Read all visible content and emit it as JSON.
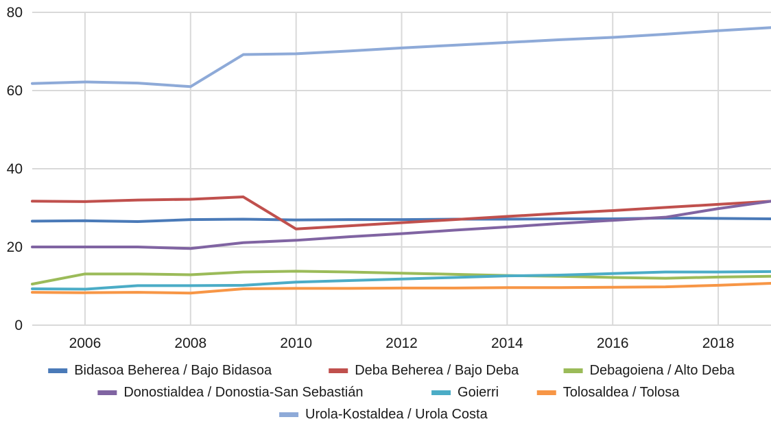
{
  "chart_data": {
    "type": "line",
    "title": "",
    "xlabel": "",
    "ylabel": "",
    "x": [
      2005,
      2006,
      2007,
      2008,
      2009,
      2010,
      2011,
      2012,
      2013,
      2014,
      2015,
      2016,
      2017,
      2018,
      2019
    ],
    "xlim": [
      2005,
      2019
    ],
    "ylim": [
      0,
      80
    ],
    "x_ticks": [
      2006,
      2008,
      2010,
      2012,
      2014,
      2016,
      2018
    ],
    "y_ticks": [
      0,
      20,
      40,
      60,
      80
    ],
    "grid": "vertical and horizontal",
    "legend_position": "bottom",
    "series": [
      {
        "name": "Bidasoa Beherea / Bajo Bidasoa",
        "color": "#4a7ab8",
        "values": [
          26.6,
          26.7,
          26.5,
          27.0,
          27.1,
          26.9,
          27.0,
          27.0,
          27.1,
          27.1,
          27.2,
          27.2,
          27.4,
          27.3,
          27.2
        ]
      },
      {
        "name": "Deba Beherea / Bajo Deba",
        "color": "#c0504d",
        "values": [
          31.7,
          31.6,
          32.0,
          32.2,
          32.8,
          24.6,
          25.4,
          26.2,
          27.0,
          27.8,
          28.6,
          29.3,
          30.1,
          30.9,
          31.7
        ]
      },
      {
        "name": "Debagoiena / Alto Deba",
        "color": "#9bbb59",
        "values": [
          10.5,
          13.1,
          13.1,
          12.9,
          13.6,
          13.8,
          13.6,
          13.3,
          13.0,
          12.7,
          12.5,
          12.2,
          12.0,
          12.3,
          12.5
        ]
      },
      {
        "name": "Donostialdea / Donostia-San Sebastián",
        "color": "#8064a2",
        "values": [
          20.0,
          20.0,
          20.0,
          19.6,
          21.1,
          21.7,
          22.6,
          23.4,
          24.3,
          25.1,
          26.0,
          26.8,
          27.6,
          29.8,
          31.7
        ]
      },
      {
        "name": "Goierri",
        "color": "#4bacc6",
        "values": [
          9.3,
          9.2,
          10.1,
          10.1,
          10.2,
          11.0,
          11.4,
          11.8,
          12.2,
          12.6,
          12.8,
          13.2,
          13.6,
          13.6,
          13.7
        ]
      },
      {
        "name": "Tolosaldea / Tolosa",
        "color": "#f79646",
        "values": [
          8.4,
          8.3,
          8.4,
          8.2,
          9.3,
          9.4,
          9.4,
          9.5,
          9.5,
          9.6,
          9.6,
          9.7,
          9.8,
          10.2,
          10.7
        ]
      },
      {
        "name": "Urola-Kostaldea / Urola Costa",
        "color": "#8eaad8",
        "values": [
          61.8,
          62.2,
          61.9,
          61.0,
          69.2,
          69.4,
          70.1,
          70.9,
          71.6,
          72.3,
          73.0,
          73.6,
          74.4,
          75.3,
          76.1
        ]
      }
    ]
  }
}
